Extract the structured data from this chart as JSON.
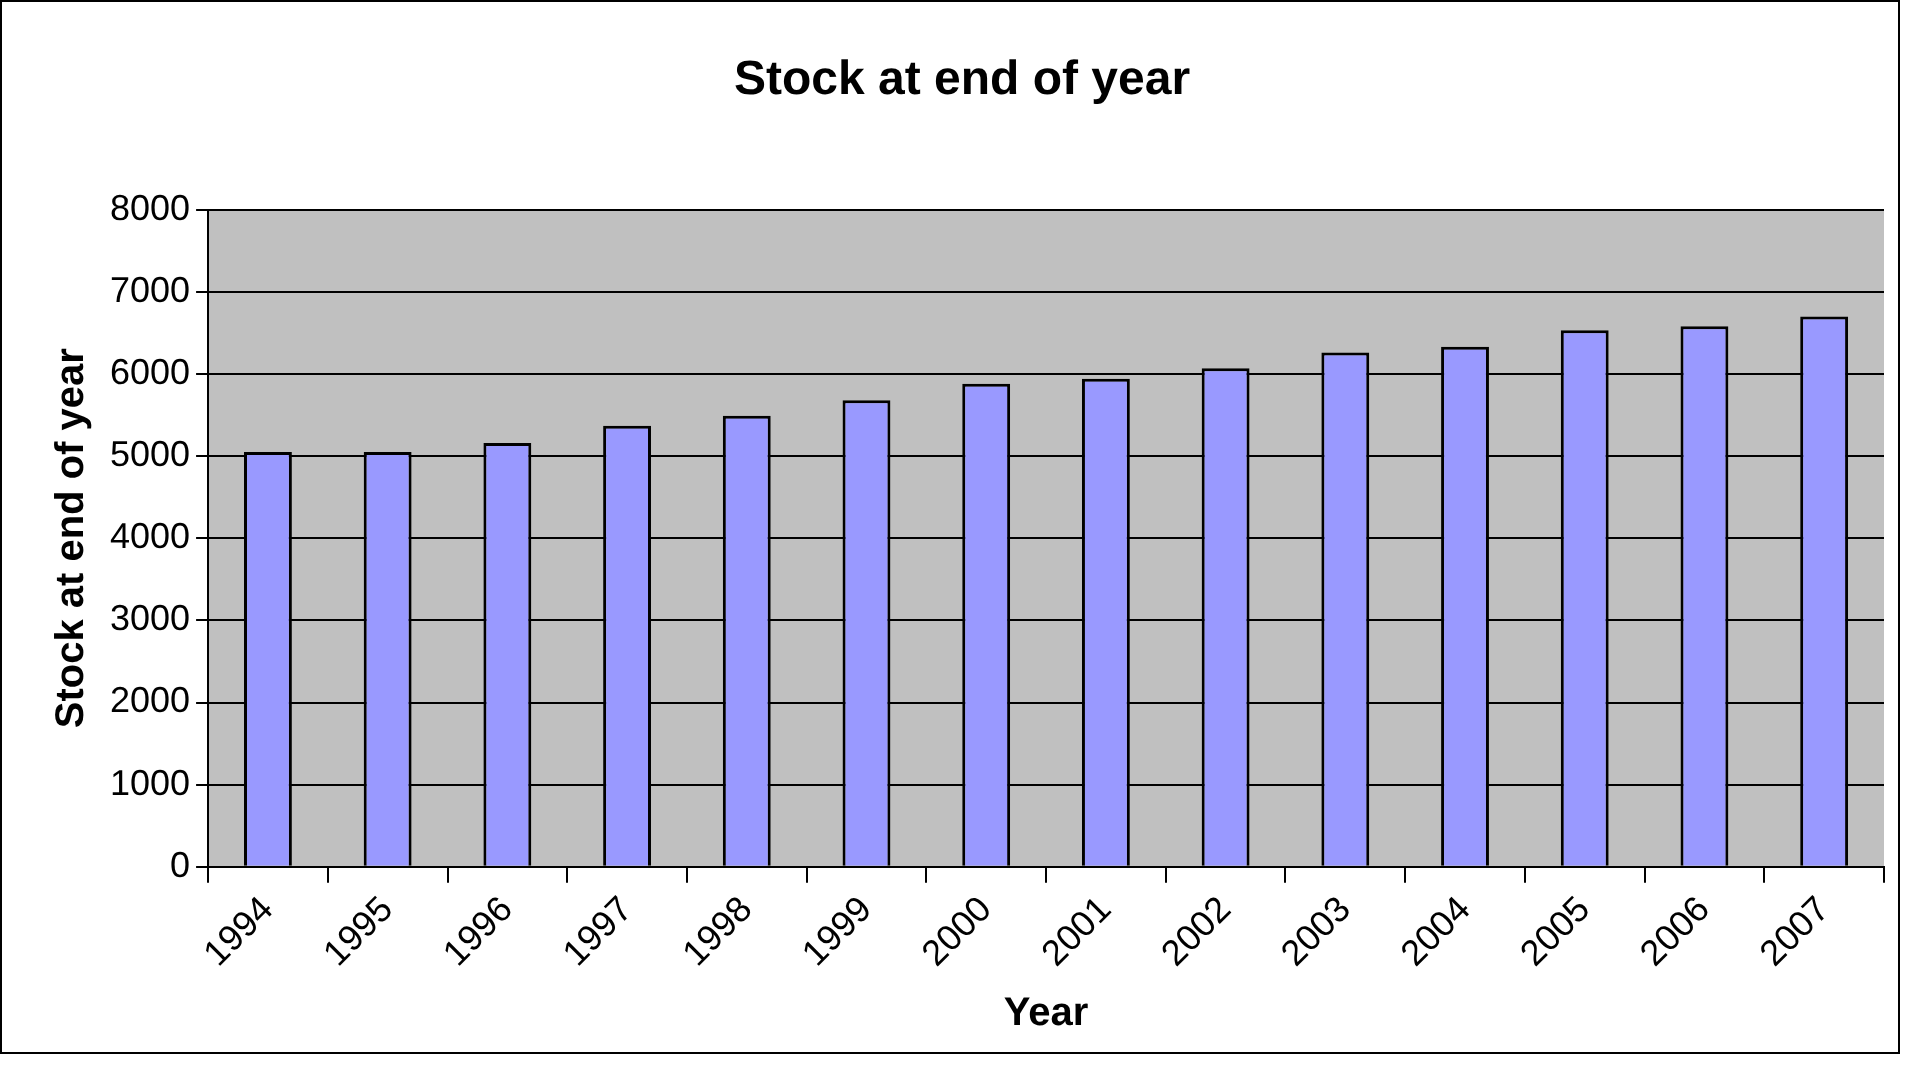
{
  "chart_data": {
    "type": "bar",
    "title": "Stock at end of year",
    "xlabel": "Year",
    "ylabel": "Stock at end of year",
    "categories": [
      "1994",
      "1995",
      "1996",
      "1997",
      "1998",
      "1999",
      "2000",
      "2001",
      "2002",
      "2003",
      "2004",
      "2005",
      "2006",
      "2007"
    ],
    "values": [
      5050,
      5050,
      5160,
      5370,
      5490,
      5680,
      5880,
      5940,
      6070,
      6260,
      6330,
      6530,
      6580,
      6700
    ],
    "color": "#9999ff",
    "ylim": [
      0,
      8000
    ],
    "yticks": [
      0,
      1000,
      2000,
      3000,
      4000,
      5000,
      6000,
      7000,
      8000
    ],
    "grid": "y",
    "legend": false
  }
}
